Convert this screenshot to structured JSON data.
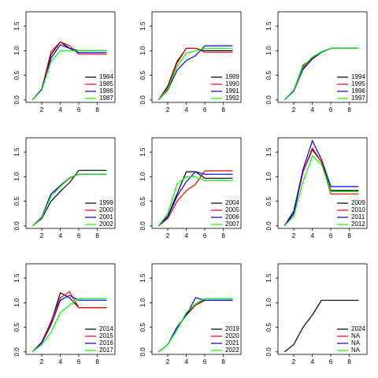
{
  "chart_data": [
    {
      "type": "line",
      "x": [
        1,
        2,
        3,
        4,
        5,
        6,
        7,
        8,
        9
      ],
      "xlim": [
        0.3,
        9.9
      ],
      "xticks": [
        2,
        4,
        6,
        8
      ],
      "ylim": [
        -0.05,
        1.79
      ],
      "yticks": [
        {
          "value": 0,
          "label": "0.0"
        },
        {
          "value": 0.5,
          "label": "0.5"
        },
        {
          "value": 1,
          "label": "1.0"
        },
        {
          "value": 1.5,
          "label": "1.5"
        }
      ],
      "legend": "bottomright",
      "series": [
        {
          "name": "1984",
          "color": "#000000",
          "values": [
            0,
            0.22,
            0.92,
            1.18,
            1.05,
            1.0,
            1.0,
            1.0,
            1.0
          ]
        },
        {
          "name": "1985",
          "color": "#FF0000",
          "values": [
            0,
            0.22,
            0.98,
            1.18,
            1.1,
            0.93,
            0.93,
            0.93,
            0.93
          ]
        },
        {
          "name": "1986",
          "color": "#0000FF",
          "values": [
            0,
            0.22,
            0.85,
            1.12,
            1.05,
            0.96,
            0.96,
            0.96,
            0.96
          ]
        },
        {
          "name": "1987",
          "color": "#00FF00",
          "values": [
            0,
            0.2,
            0.78,
            1.0,
            1.0,
            1.0,
            1.0,
            1.0,
            1.0
          ]
        }
      ]
    },
    {
      "type": "line",
      "x": [
        1,
        2,
        3,
        4,
        5,
        6,
        7,
        8,
        9
      ],
      "xlim": [
        0.3,
        9.9
      ],
      "xticks": [
        2,
        4,
        6,
        8
      ],
      "ylim": [
        -0.05,
        1.79
      ],
      "yticks": [
        {
          "value": 0,
          "label": "0.0"
        },
        {
          "value": 0.5,
          "label": "0.5"
        },
        {
          "value": 1,
          "label": "1.0"
        },
        {
          "value": 1.5,
          "label": "1.5"
        }
      ],
      "legend": "bottomright",
      "series": [
        {
          "name": "1989",
          "color": "#000000",
          "values": [
            0,
            0.28,
            0.78,
            1.05,
            1.05,
            1.0,
            1.0,
            1.0,
            1.0
          ]
        },
        {
          "name": "1990",
          "color": "#FF0000",
          "values": [
            0,
            0.25,
            0.75,
            1.05,
            1.05,
            0.97,
            0.97,
            0.97,
            0.97
          ]
        },
        {
          "name": "1991",
          "color": "#0000FF",
          "values": [
            0,
            0.2,
            0.6,
            0.8,
            0.9,
            1.1,
            1.1,
            1.1,
            1.1
          ]
        },
        {
          "name": "1992",
          "color": "#00FF00",
          "values": [
            0,
            0.22,
            0.68,
            0.95,
            1.0,
            1.05,
            1.05,
            1.05,
            1.05
          ]
        }
      ]
    },
    {
      "type": "line",
      "x": [
        1,
        2,
        3,
        4,
        5,
        6,
        7,
        8,
        9
      ],
      "xlim": [
        0.3,
        9.9
      ],
      "xticks": [
        2,
        4,
        6,
        8
      ],
      "ylim": [
        -0.05,
        1.79
      ],
      "yticks": [
        {
          "value": 0,
          "label": "0.0"
        },
        {
          "value": 0.5,
          "label": "0.5"
        },
        {
          "value": 1,
          "label": "1.0"
        },
        {
          "value": 1.5,
          "label": "1.5"
        }
      ],
      "legend": "bottomright",
      "series": [
        {
          "name": "1994",
          "color": "#000000",
          "values": [
            0,
            0.2,
            0.7,
            0.85,
            0.98,
            1.05,
            1.05,
            1.05,
            1.05
          ]
        },
        {
          "name": "1995",
          "color": "#FF0000",
          "values": [
            0,
            0.2,
            0.65,
            0.85,
            0.97,
            1.05,
            1.05,
            1.05,
            1.05
          ]
        },
        {
          "name": "1996",
          "color": "#0000FF",
          "values": [
            0,
            0.18,
            0.62,
            0.83,
            0.97,
            1.05,
            1.05,
            1.05,
            1.05
          ]
        },
        {
          "name": "1997",
          "color": "#00FF00",
          "values": [
            0,
            0.2,
            0.68,
            0.87,
            0.98,
            1.05,
            1.05,
            1.05,
            1.05
          ]
        }
      ]
    },
    {
      "type": "line",
      "x": [
        1,
        2,
        3,
        4,
        5,
        6,
        7,
        8,
        9
      ],
      "xlim": [
        0.3,
        9.9
      ],
      "xticks": [
        2,
        4,
        6,
        8
      ],
      "ylim": [
        -0.05,
        1.79
      ],
      "yticks": [
        {
          "value": 0,
          "label": "0.0"
        },
        {
          "value": 0.5,
          "label": "0.5"
        },
        {
          "value": 1,
          "label": "1.0"
        },
        {
          "value": 1.5,
          "label": "1.5"
        }
      ],
      "legend": "bottomright",
      "series": [
        {
          "name": "1999",
          "color": "#000000",
          "values": [
            0,
            0.15,
            0.5,
            0.7,
            0.88,
            1.13,
            1.13,
            1.13,
            1.13
          ]
        },
        {
          "name": "2000",
          "color": "#FF0000",
          "values": [
            0,
            0.18,
            0.65,
            0.8,
            0.97,
            1.05,
            1.05,
            1.05,
            1.05
          ]
        },
        {
          "name": "2001",
          "color": "#0000FF",
          "values": [
            0,
            0.18,
            0.65,
            0.82,
            0.98,
            1.05,
            1.05,
            1.05,
            1.05
          ]
        },
        {
          "name": "2002",
          "color": "#00FF00",
          "values": [
            0,
            0.17,
            0.6,
            0.8,
            0.98,
            1.05,
            1.05,
            1.05,
            1.05
          ]
        }
      ]
    },
    {
      "type": "line",
      "x": [
        1,
        2,
        3,
        4,
        5,
        6,
        7,
        8,
        9
      ],
      "xlim": [
        0.3,
        9.9
      ],
      "xticks": [
        2,
        4,
        6,
        8
      ],
      "ylim": [
        -0.05,
        1.79
      ],
      "yticks": [
        {
          "value": 0,
          "label": "0.0"
        },
        {
          "value": 0.5,
          "label": "0.5"
        },
        {
          "value": 1,
          "label": "1.0"
        },
        {
          "value": 1.5,
          "label": "1.5"
        }
      ],
      "legend": "bottomright",
      "series": [
        {
          "name": "2004",
          "color": "#000000",
          "values": [
            0,
            0.2,
            0.65,
            1.1,
            1.1,
            0.97,
            0.97,
            0.97,
            0.97
          ]
        },
        {
          "name": "2005",
          "color": "#FF0000",
          "values": [
            0,
            0.15,
            0.5,
            0.72,
            0.85,
            1.12,
            1.12,
            1.12,
            1.12
          ]
        },
        {
          "name": "2006",
          "color": "#0000FF",
          "values": [
            0,
            0.18,
            0.6,
            0.9,
            1.1,
            1.05,
            1.05,
            1.05,
            1.05
          ]
        },
        {
          "name": "2007",
          "color": "#00FF00",
          "values": [
            0,
            0.25,
            0.85,
            1.0,
            1.0,
            0.92,
            0.92,
            0.92,
            0.92
          ]
        }
      ]
    },
    {
      "type": "line",
      "x": [
        1,
        2,
        3,
        4,
        5,
        6,
        7,
        8,
        9
      ],
      "xlim": [
        0.3,
        9.9
      ],
      "xticks": [
        2,
        4,
        6,
        8
      ],
      "ylim": [
        -0.05,
        1.79
      ],
      "yticks": [
        {
          "value": 0,
          "label": "0.0"
        },
        {
          "value": 0.5,
          "label": "0.5"
        },
        {
          "value": 1,
          "label": "1.0"
        },
        {
          "value": 1.5,
          "label": "1.5"
        }
      ],
      "legend": "bottomright",
      "series": [
        {
          "name": "2009",
          "color": "#000000",
          "values": [
            0,
            0.25,
            1.1,
            1.55,
            1.3,
            0.72,
            0.72,
            0.72,
            0.72
          ]
        },
        {
          "name": "2010",
          "color": "#FF0000",
          "values": [
            0,
            0.3,
            1.1,
            1.58,
            1.3,
            0.65,
            0.65,
            0.65,
            0.65
          ]
        },
        {
          "name": "2011",
          "color": "#0000FF",
          "values": [
            0,
            0.3,
            1.15,
            1.73,
            1.35,
            0.8,
            0.8,
            0.8,
            0.8
          ]
        },
        {
          "name": "2012",
          "color": "#00FF00",
          "values": [
            0,
            0.2,
            0.9,
            1.42,
            1.25,
            0.7,
            0.7,
            0.7,
            0.7
          ]
        }
      ]
    },
    {
      "type": "line",
      "x": [
        1,
        2,
        3,
        4,
        5,
        6,
        7,
        8,
        9
      ],
      "xlim": [
        0.3,
        9.9
      ],
      "xticks": [
        2,
        4,
        6,
        8
      ],
      "ylim": [
        -0.05,
        1.79
      ],
      "yticks": [
        {
          "value": 0,
          "label": "0.0"
        },
        {
          "value": 0.5,
          "label": "0.5"
        },
        {
          "value": 1,
          "label": "1.0"
        },
        {
          "value": 1.5,
          "label": "1.5"
        }
      ],
      "legend": "bottomright",
      "series": [
        {
          "name": "2014",
          "color": "#000000",
          "values": [
            0,
            0.2,
            0.6,
            1.2,
            1.1,
            0.9,
            0.9,
            0.9,
            0.9
          ]
        },
        {
          "name": "2015",
          "color": "#FF0000",
          "values": [
            0,
            0.2,
            0.62,
            1.1,
            1.22,
            0.9,
            0.9,
            0.9,
            0.9
          ]
        },
        {
          "name": "2016",
          "color": "#0000FF",
          "values": [
            0,
            0.18,
            0.55,
            1.05,
            1.15,
            1.05,
            1.05,
            1.05,
            1.05
          ]
        },
        {
          "name": "2017",
          "color": "#00FF00",
          "values": [
            0,
            0.15,
            0.4,
            0.8,
            0.95,
            1.08,
            1.08,
            1.08,
            1.08
          ]
        }
      ]
    },
    {
      "type": "line",
      "x": [
        1,
        2,
        3,
        4,
        5,
        6,
        7,
        8,
        9
      ],
      "xlim": [
        0.3,
        9.9
      ],
      "xticks": [
        2,
        4,
        6,
        8
      ],
      "ylim": [
        -0.05,
        1.79
      ],
      "yticks": [
        {
          "value": 0,
          "label": "0.0"
        },
        {
          "value": 0.5,
          "label": "0.5"
        },
        {
          "value": 1,
          "label": "1.0"
        },
        {
          "value": 1.5,
          "label": "1.5"
        }
      ],
      "legend": "bottomright",
      "series": [
        {
          "name": "2019",
          "color": "#000000",
          "values": [
            0,
            0.15,
            0.5,
            0.75,
            0.95,
            1.05,
            1.05,
            1.05,
            1.05
          ]
        },
        {
          "name": "2020",
          "color": "#FF0000",
          "values": [
            0,
            0.15,
            0.45,
            0.78,
            0.95,
            1.08,
            1.08,
            1.08,
            1.08
          ]
        },
        {
          "name": "2021",
          "color": "#0000FF",
          "values": [
            0,
            0.15,
            0.5,
            0.75,
            1.1,
            1.05,
            1.05,
            1.05,
            1.05
          ]
        },
        {
          "name": "2022",
          "color": "#00FF00",
          "values": [
            0,
            0.15,
            0.45,
            0.8,
            0.98,
            1.08,
            1.08,
            1.08,
            1.08
          ]
        }
      ]
    },
    {
      "type": "line",
      "x": [
        1,
        2,
        3,
        4,
        5,
        6,
        7,
        8,
        9
      ],
      "xlim": [
        0.3,
        9.9
      ],
      "xticks": [
        2,
        4,
        6,
        8
      ],
      "ylim": [
        -0.05,
        1.79
      ],
      "yticks": [
        {
          "value": 0,
          "label": "0.0"
        },
        {
          "value": 0.5,
          "label": "0.5"
        },
        {
          "value": 1,
          "label": "1.0"
        },
        {
          "value": 1.5,
          "label": "1.5"
        }
      ],
      "legend": "bottomright",
      "series": [
        {
          "name": "2024",
          "color": "#000000",
          "values": [
            0,
            0.15,
            0.5,
            0.75,
            1.05,
            1.05,
            1.05,
            1.05,
            1.05
          ]
        },
        {
          "name": "NA",
          "color": "#FF0000",
          "values": [
            null,
            null,
            null,
            null,
            null,
            null,
            null,
            null,
            null
          ]
        },
        {
          "name": "NA",
          "color": "#0000FF",
          "values": [
            null,
            null,
            null,
            null,
            null,
            null,
            null,
            null,
            null
          ]
        },
        {
          "name": "NA",
          "color": "#00FF00",
          "values": [
            null,
            null,
            null,
            null,
            null,
            null,
            null,
            null,
            null
          ]
        }
      ]
    }
  ]
}
